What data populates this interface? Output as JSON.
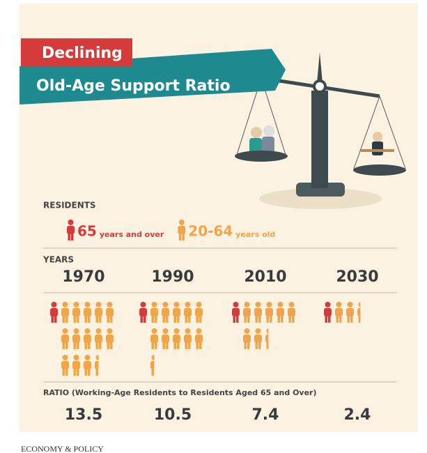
{
  "chart_data": {
    "type": "pictogram",
    "title": "Declining",
    "subtitle": "Old-Age Support Ratio",
    "legend_title": "RESIDENTS",
    "legend": [
      {
        "label": "65",
        "note": "years and over",
        "color": "#d63b3b"
      },
      {
        "label": "20-64",
        "note": "years old",
        "color": "#f0a54a"
      }
    ],
    "x_label": "YEARS",
    "categories": [
      "1970",
      "1990",
      "2010",
      "2030"
    ],
    "values_label": "RATIO (Working-Age Residents to Residents Aged 65 and Over)",
    "values": [
      13.5,
      10.5,
      7.4,
      2.4
    ],
    "per_row": 5
  },
  "footer": "ECONOMY & POLICY"
}
